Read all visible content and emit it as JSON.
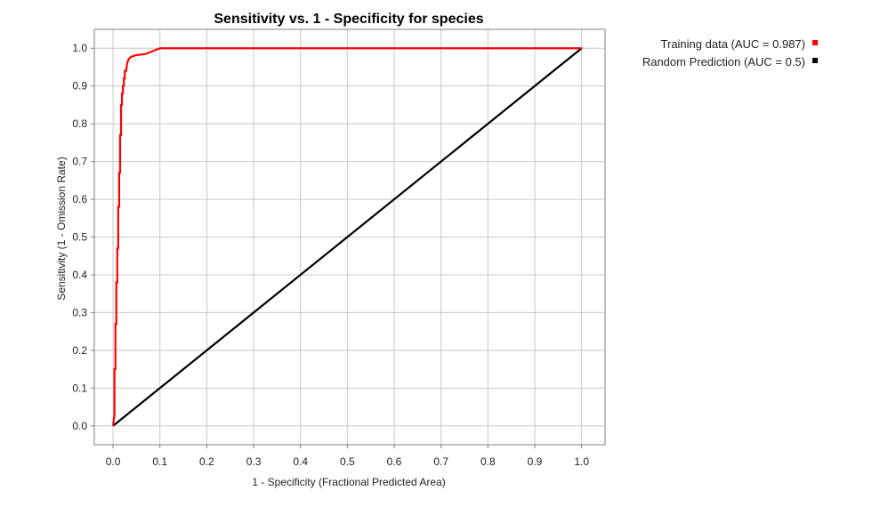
{
  "chart_data": {
    "type": "line",
    "title": "Sensitivity vs. 1 - Specificity for species",
    "xlabel": "1 - Specificity  (Fractional Predicted Area)",
    "ylabel": "Sensitivity  (1 - Omission Rate)",
    "xlim": [
      -0.04,
      1.05
    ],
    "ylim": [
      -0.05,
      1.05
    ],
    "xticks": [
      "0.0",
      "0.1",
      "0.2",
      "0.3",
      "0.4",
      "0.5",
      "0.6",
      "0.7",
      "0.8",
      "0.9",
      "1.0"
    ],
    "yticks": [
      "0.0",
      "0.1",
      "0.2",
      "0.3",
      "0.4",
      "0.5",
      "0.6",
      "0.7",
      "0.8",
      "0.9",
      "1.0"
    ],
    "grid": true,
    "legend_position": "top-right",
    "series": [
      {
        "name": "Training data (AUC = 0.987)",
        "color": "#ff0000",
        "x": [
          0.0,
          0.003,
          0.003,
          0.005,
          0.005,
          0.007,
          0.007,
          0.009,
          0.009,
          0.011,
          0.011,
          0.013,
          0.013,
          0.015,
          0.015,
          0.017,
          0.017,
          0.019,
          0.019,
          0.021,
          0.021,
          0.023,
          0.023,
          0.025,
          0.025,
          0.028,
          0.03,
          0.033,
          0.036,
          0.04,
          0.045,
          0.05,
          0.06,
          0.07,
          0.08,
          0.09,
          0.1,
          0.2,
          0.3,
          0.4,
          0.5,
          0.6,
          0.7,
          0.8,
          0.9,
          1.0
        ],
        "y": [
          0.0,
          0.03,
          0.15,
          0.15,
          0.27,
          0.27,
          0.38,
          0.38,
          0.47,
          0.47,
          0.58,
          0.58,
          0.67,
          0.67,
          0.77,
          0.77,
          0.85,
          0.85,
          0.88,
          0.88,
          0.9,
          0.9,
          0.92,
          0.92,
          0.94,
          0.94,
          0.96,
          0.97,
          0.975,
          0.978,
          0.98,
          0.982,
          0.983,
          0.985,
          0.99,
          0.995,
          1.0,
          1.0,
          1.0,
          1.0,
          1.0,
          1.0,
          1.0,
          1.0,
          1.0,
          1.0
        ]
      },
      {
        "name": "Random Prediction (AUC = 0.5)",
        "color": "#000000",
        "x": [
          0.0,
          1.0
        ],
        "y": [
          0.0,
          1.0
        ]
      }
    ]
  }
}
